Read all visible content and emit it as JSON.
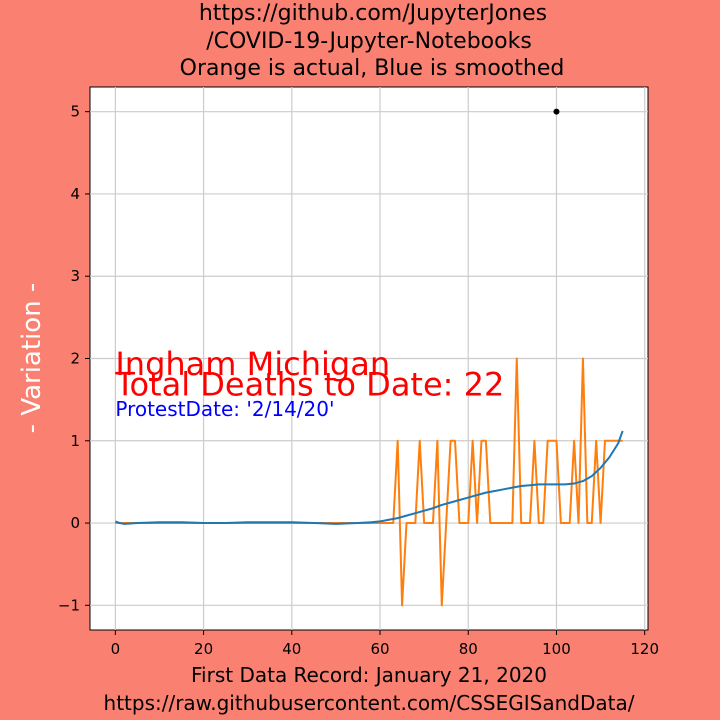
{
  "chart_data": {
    "type": "line",
    "title_lines": [
      "https://github.com/JupyterJones",
      "/COVID-19-Jupyter-Notebooks",
      "Orange is actual, Blue is smoothed"
    ],
    "xlabel_lines": [
      "First Data Record: January 21, 2020",
      "https://raw.githubusercontent.com/CSSEGISandData/"
    ],
    "ylabel": "- Variation -",
    "xlim": [
      -5.75,
      120.75
    ],
    "ylim": [
      -1.3,
      5.3
    ],
    "xticks": [
      0,
      20,
      40,
      60,
      80,
      100,
      120
    ],
    "xtick_labels": [
      "0",
      "20",
      "40",
      "60",
      "80",
      "100",
      "120"
    ],
    "yticks": [
      -1,
      0,
      1,
      2,
      3,
      4,
      5
    ],
    "ytick_labels": [
      "−1",
      "0",
      "1",
      "2",
      "3",
      "4",
      "5"
    ],
    "grid": true,
    "annotations": [
      {
        "text": "Ingham Michigan",
        "x": 0,
        "y": 1.8,
        "color": "#ff0000"
      },
      {
        "text": "Total Deaths to Date: 22",
        "x": 0,
        "y": 1.55,
        "color": "#ff0000"
      },
      {
        "text": "ProtestDate:  '2/14/20'",
        "x": 0,
        "y": 1.3,
        "color": "#0000ff"
      }
    ],
    "marker": {
      "x": 100,
      "y": 5
    },
    "series": [
      {
        "color": "#ff7f0e",
        "x": [
          0,
          1,
          2,
          3,
          4,
          5,
          6,
          7,
          8,
          9,
          10,
          11,
          12,
          13,
          14,
          15,
          16,
          17,
          18,
          19,
          20,
          21,
          22,
          23,
          24,
          25,
          26,
          27,
          28,
          29,
          30,
          31,
          32,
          33,
          34,
          35,
          36,
          37,
          38,
          39,
          40,
          41,
          42,
          43,
          44,
          45,
          46,
          47,
          48,
          49,
          50,
          51,
          52,
          53,
          54,
          55,
          56,
          57,
          58,
          59,
          60,
          61,
          62,
          63,
          64,
          65,
          66,
          67,
          68,
          69,
          70,
          71,
          72,
          73,
          74,
          75,
          76,
          77,
          78,
          79,
          80,
          81,
          82,
          83,
          84,
          85,
          86,
          87,
          88,
          89,
          90,
          91,
          92,
          93,
          94,
          95,
          96,
          97,
          98,
          99,
          100,
          101,
          102,
          103,
          104,
          105,
          106,
          107,
          108,
          109,
          110,
          111,
          112,
          113,
          114,
          115
        ],
        "y": [
          0,
          0,
          0,
          0,
          0,
          0,
          0,
          0,
          0,
          0,
          0,
          0,
          0,
          0,
          0,
          0,
          0,
          0,
          0,
          0,
          0,
          0,
          0,
          0,
          0,
          0,
          0,
          0,
          0,
          0,
          0,
          0,
          0,
          0,
          0,
          0,
          0,
          0,
          0,
          0,
          0,
          0,
          0,
          0,
          0,
          0,
          0,
          0,
          0,
          0,
          0,
          0,
          0,
          0,
          0,
          0,
          0,
          0,
          0,
          0,
          0,
          0,
          0,
          0,
          1,
          -1,
          0,
          0,
          0,
          1,
          0,
          0,
          0,
          1,
          -1,
          0,
          1,
          1,
          0,
          0,
          0,
          1,
          0,
          1,
          1,
          0,
          0,
          0,
          0,
          0,
          0,
          2,
          0,
          0,
          0,
          1,
          0,
          0,
          1,
          1,
          1,
          0,
          0,
          0,
          1,
          0,
          2,
          0,
          0,
          1,
          0,
          1,
          1,
          1,
          1,
          1
        ]
      },
      {
        "color": "#1f77b4",
        "x": [
          0,
          1,
          2,
          5,
          10,
          15,
          20,
          25,
          30,
          35,
          40,
          45,
          50,
          55,
          58,
          60,
          62,
          64,
          66,
          68,
          70,
          72,
          74,
          76,
          78,
          80,
          82,
          84,
          86,
          88,
          90,
          92,
          94,
          96,
          98,
          100,
          102,
          104,
          106,
          108,
          110,
          112,
          114,
          115
        ],
        "y": [
          0.02,
          0.0,
          -0.01,
          0.0,
          0.01,
          0.01,
          0.0,
          0.0,
          0.01,
          0.01,
          0.01,
          0.0,
          -0.01,
          0.0,
          0.01,
          0.02,
          0.04,
          0.06,
          0.09,
          0.12,
          0.15,
          0.18,
          0.22,
          0.25,
          0.28,
          0.31,
          0.34,
          0.37,
          0.39,
          0.41,
          0.43,
          0.45,
          0.46,
          0.47,
          0.47,
          0.47,
          0.47,
          0.48,
          0.51,
          0.57,
          0.67,
          0.8,
          0.97,
          1.12
        ]
      }
    ]
  }
}
